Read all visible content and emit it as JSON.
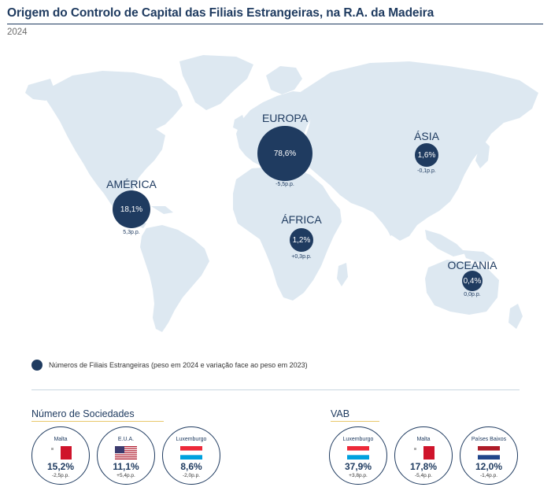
{
  "header": {
    "title": "Origem do Controlo de Capital das Filiais Estrangeiras, na R.A. da Madeira",
    "subtitle": "2024"
  },
  "colors": {
    "primary": "#1f3b60",
    "land": "#dde8f1",
    "accent_rule": "#e8c86b"
  },
  "map": {
    "regions": [
      {
        "id": "america",
        "name": "AMÉRICA",
        "share": "18,1%",
        "change": "5,3p.p."
      },
      {
        "id": "europa",
        "name": "EUROPA",
        "share": "78,6%",
        "change": "-5,5p.p."
      },
      {
        "id": "africa",
        "name": "ÁFRICA",
        "share": "1,2%",
        "change": "+0,3p.p."
      },
      {
        "id": "asia",
        "name": "ÁSIA",
        "share": "1,6%",
        "change": "-0,1p.p."
      },
      {
        "id": "oceania",
        "name": "OCEANIA",
        "share": "0,4%",
        "change": "0,0p.p."
      }
    ]
  },
  "legend": {
    "text": "Números de Filiais Estrangeiras (peso em 2024 e variação face ao peso em 2023)"
  },
  "numero_sociedades": {
    "title": "Número de Sociedades",
    "items": [
      {
        "country": "Malta",
        "flag": "malta",
        "value": "15,2%",
        "change": "-2,5p.p."
      },
      {
        "country": "E.U.A.",
        "flag": "usa",
        "value": "11,1%",
        "change": "+5,4p.p."
      },
      {
        "country": "Luxemburgo",
        "flag": "luxembourg",
        "value": "8,6%",
        "change": "-2,0p.p."
      }
    ]
  },
  "vab": {
    "title": "VAB",
    "items": [
      {
        "country": "Luxemburgo",
        "flag": "luxembourg",
        "value": "37,9%",
        "change": "+3,8p.p."
      },
      {
        "country": "Malta",
        "flag": "malta",
        "value": "17,8%",
        "change": "-5,4p.p."
      },
      {
        "country": "Países Baixos",
        "flag": "netherlands",
        "value": "12,0%",
        "change": "-1,4p.p."
      }
    ]
  }
}
